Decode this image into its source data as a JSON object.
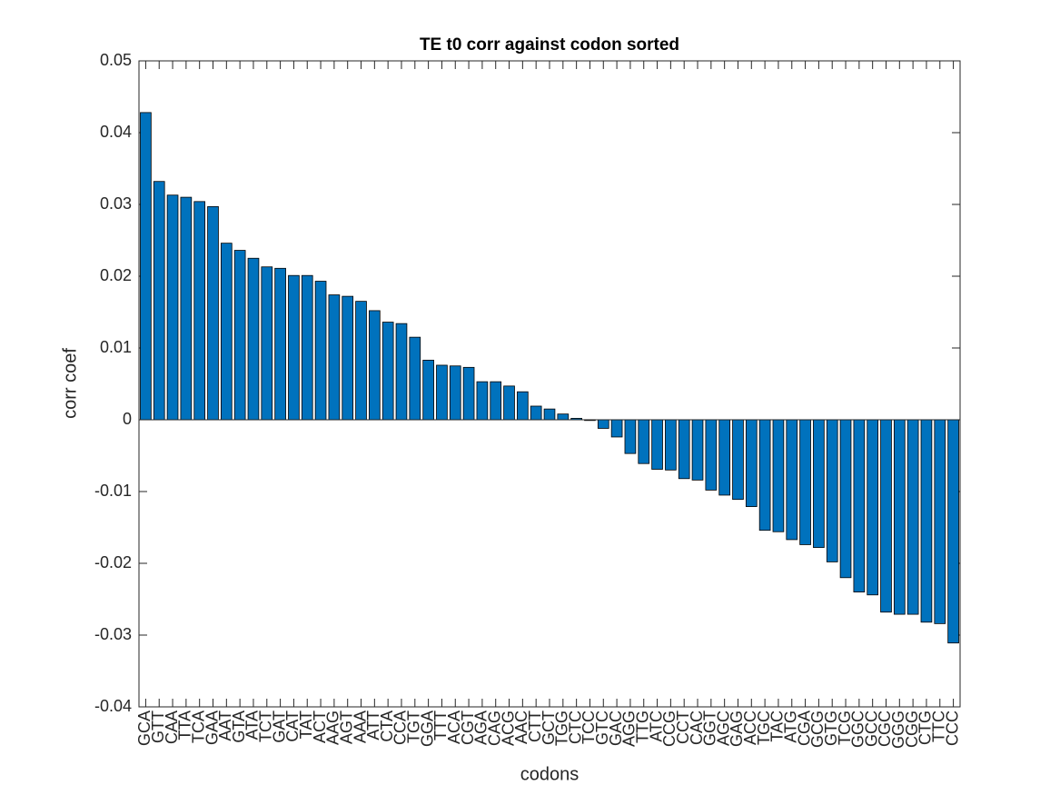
{
  "chart_data": {
    "type": "bar",
    "title": "TE t0 corr against codon sorted",
    "xlabel": "codons",
    "ylabel": "corr coef",
    "categories": [
      "GCA",
      "GTT",
      "CAA",
      "TTA",
      "TCA",
      "GAA",
      "AAT",
      "GTA",
      "ATA",
      "TCT",
      "GAT",
      "CAT",
      "TAT",
      "ACT",
      "AAG",
      "AGT",
      "AAA",
      "ATT",
      "CTA",
      "CCA",
      "TGT",
      "GGA",
      "TTT",
      "ACA",
      "CGT",
      "AGA",
      "CAG",
      "ACG",
      "AAC",
      "CTT",
      "GCT",
      "TGG",
      "CTC",
      "TCC",
      "GTC",
      "GAC",
      "AGG",
      "TTG",
      "ATC",
      "CCG",
      "CCT",
      "CAC",
      "GGT",
      "AGC",
      "GAG",
      "ACC",
      "TGC",
      "TAC",
      "ATG",
      "CGA",
      "GCG",
      "GTG",
      "TCG",
      "GGC",
      "GCC",
      "CGC",
      "GGG",
      "CGG",
      "CTG",
      "TTC",
      "CCC"
    ],
    "values": [
      0.0428,
      0.0332,
      0.0313,
      0.031,
      0.0304,
      0.0297,
      0.0246,
      0.0236,
      0.0225,
      0.0213,
      0.0211,
      0.0201,
      0.0201,
      0.0193,
      0.0174,
      0.0172,
      0.0165,
      0.0152,
      0.0136,
      0.0134,
      0.0115,
      0.0083,
      0.0076,
      0.0075,
      0.0073,
      0.0053,
      0.0053,
      0.0047,
      0.0039,
      0.0019,
      0.0015,
      0.0008,
      0.0002,
      -0.0001,
      -0.0012,
      -0.0024,
      -0.0047,
      -0.0061,
      -0.0069,
      -0.007,
      -0.0082,
      -0.0084,
      -0.0098,
      -0.0105,
      -0.0111,
      -0.0121,
      -0.0154,
      -0.0156,
      -0.0167,
      -0.0174,
      -0.0178,
      -0.0198,
      -0.022,
      -0.024,
      -0.0244,
      -0.0268,
      -0.0271,
      -0.0271,
      -0.0282,
      -0.0284,
      -0.0311
    ],
    "color": "#0072bd",
    "ylim": [
      -0.04,
      0.05
    ],
    "yticks": [
      -0.04,
      -0.03,
      -0.02,
      -0.01,
      0,
      0.01,
      0.02,
      0.03,
      0.04,
      0.05
    ],
    "grid": false
  }
}
